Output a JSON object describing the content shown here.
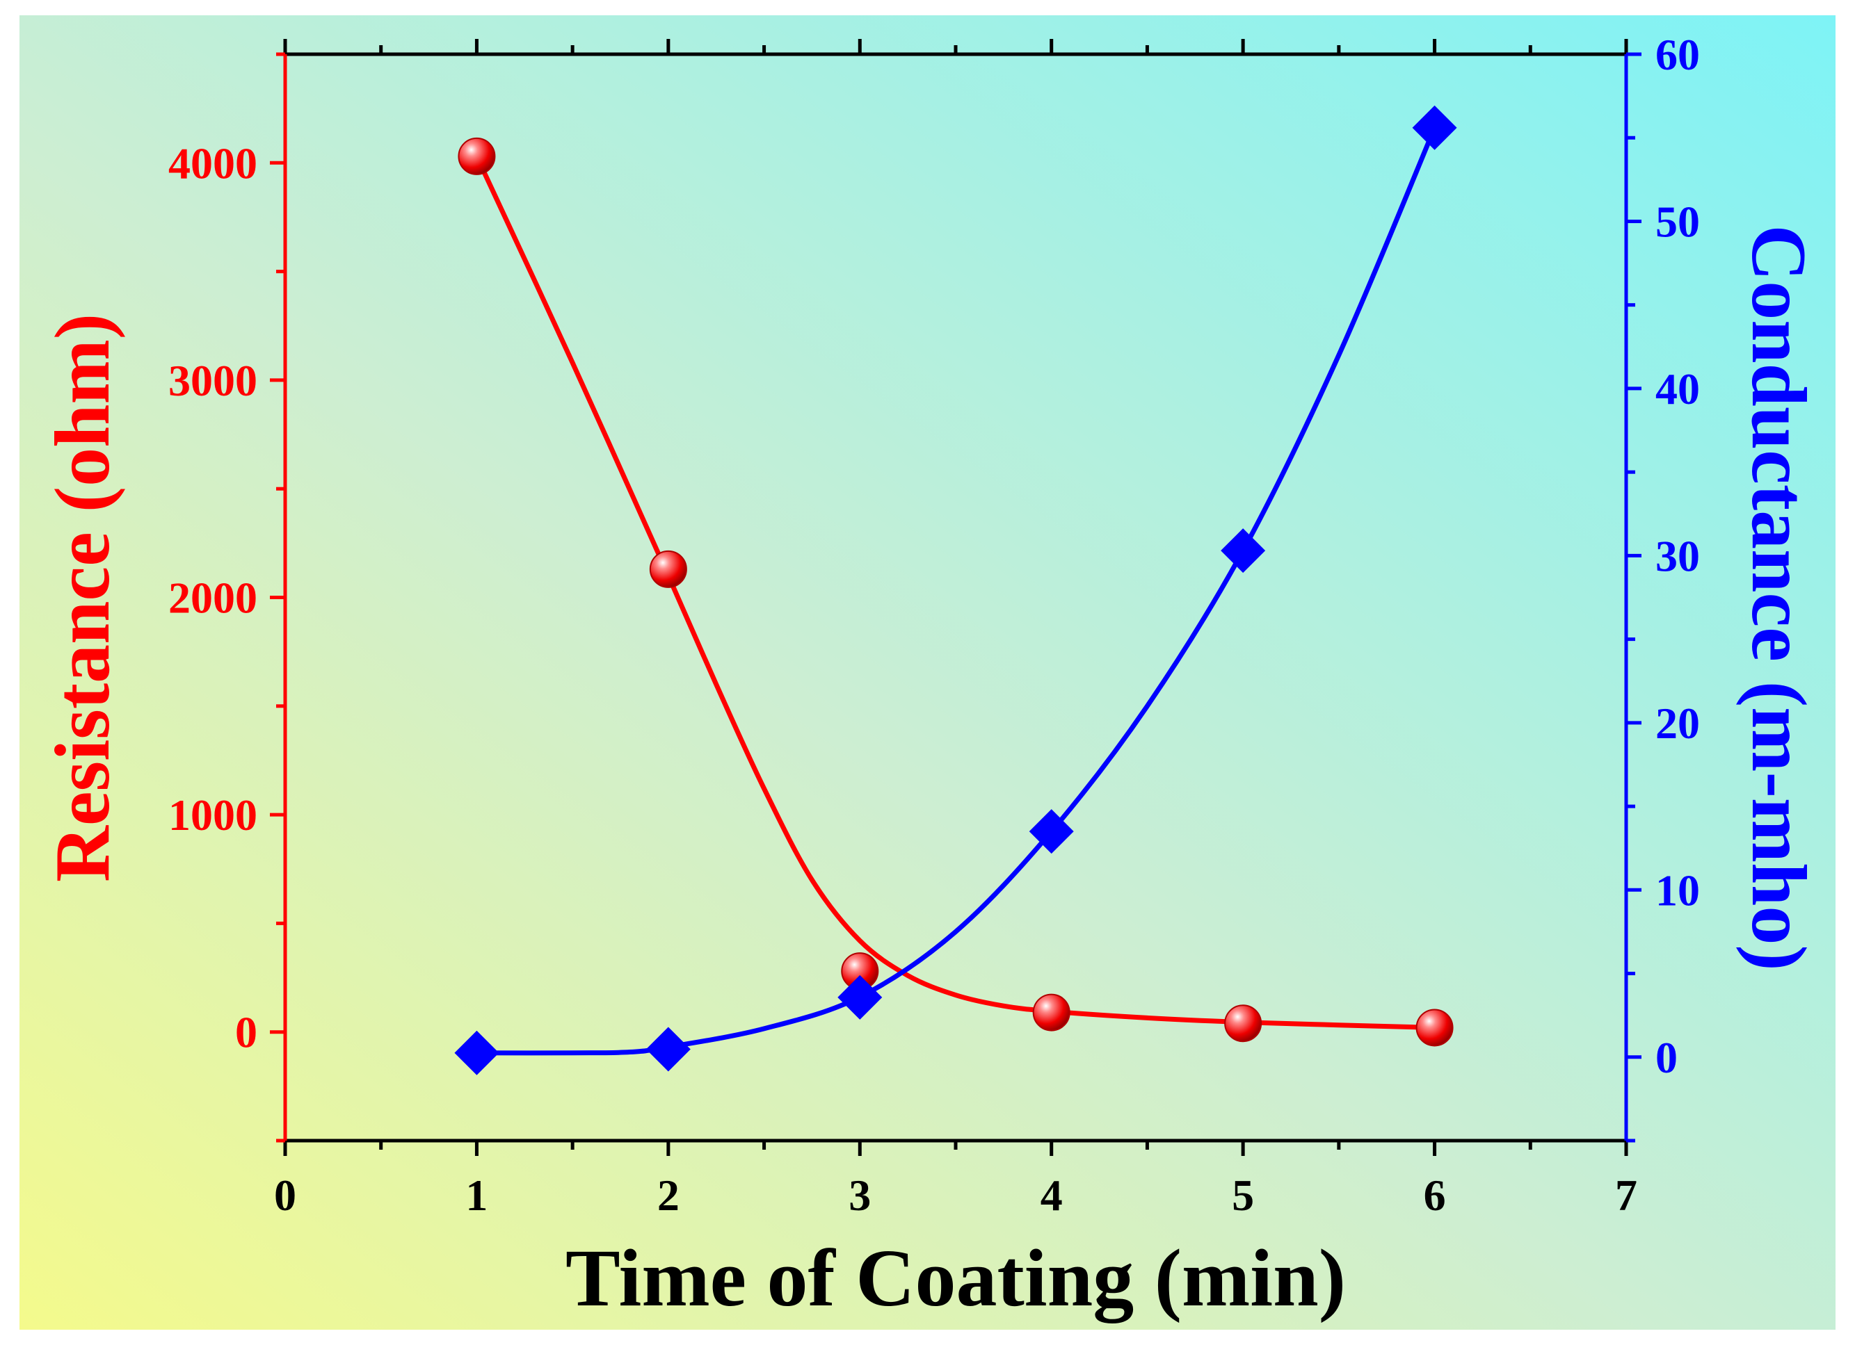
{
  "chart_data": {
    "type": "line",
    "xlabel": "Time of Coating (min)",
    "ylabel_left": "Resistance (ohm)",
    "ylabel_right": "Conductance (m-mho)",
    "xlim": [
      0,
      7
    ],
    "xticks": [
      0,
      1,
      2,
      3,
      4,
      5,
      6,
      7
    ],
    "ylim_left": [
      -500,
      4500
    ],
    "yticks_left": [
      0,
      1000,
      2000,
      3000,
      4000
    ],
    "ylim_right": [
      -5,
      60
    ],
    "yticks_right": [
      0,
      10,
      20,
      30,
      40,
      50,
      60
    ],
    "series": [
      {
        "name": "Resistance",
        "axis": "left",
        "marker": "circle",
        "color": "#ff0000",
        "x": [
          1,
          2,
          3,
          4,
          5,
          6
        ],
        "y": [
          4030,
          2130,
          280,
          90,
          40,
          20
        ],
        "fit_x": [
          1,
          1.5,
          2,
          2.25,
          2.5,
          2.75,
          3,
          3.25,
          3.5,
          3.75,
          4,
          4.5,
          5,
          5.5,
          6
        ],
        "fit_y": [
          4030,
          3080,
          2100,
          1600,
          1120,
          700,
          420,
          260,
          170,
          120,
          95,
          65,
          45,
          32,
          20
        ]
      },
      {
        "name": "Conductance",
        "axis": "right",
        "marker": "diamond",
        "color": "#0000ff",
        "x": [
          1,
          2,
          3,
          4,
          5,
          6
        ],
        "y": [
          0.25,
          0.47,
          3.57,
          13.5,
          30.3,
          55.6
        ],
        "fit_x": [
          1,
          1.5,
          1.8,
          2,
          2.5,
          3,
          3.5,
          4,
          4.5,
          5,
          5.5,
          6
        ],
        "fit_y": [
          0.25,
          0.25,
          0.3,
          0.6,
          1.7,
          3.6,
          7.5,
          13.5,
          21,
          30.3,
          42,
          55.6
        ]
      }
    ]
  },
  "colors": {
    "left_axis": "#ff0000",
    "right_axis": "#0000ff",
    "frame": "#000000",
    "bg_yellow": "#f4fa8c",
    "bg_cyan": "#86f6f6"
  }
}
